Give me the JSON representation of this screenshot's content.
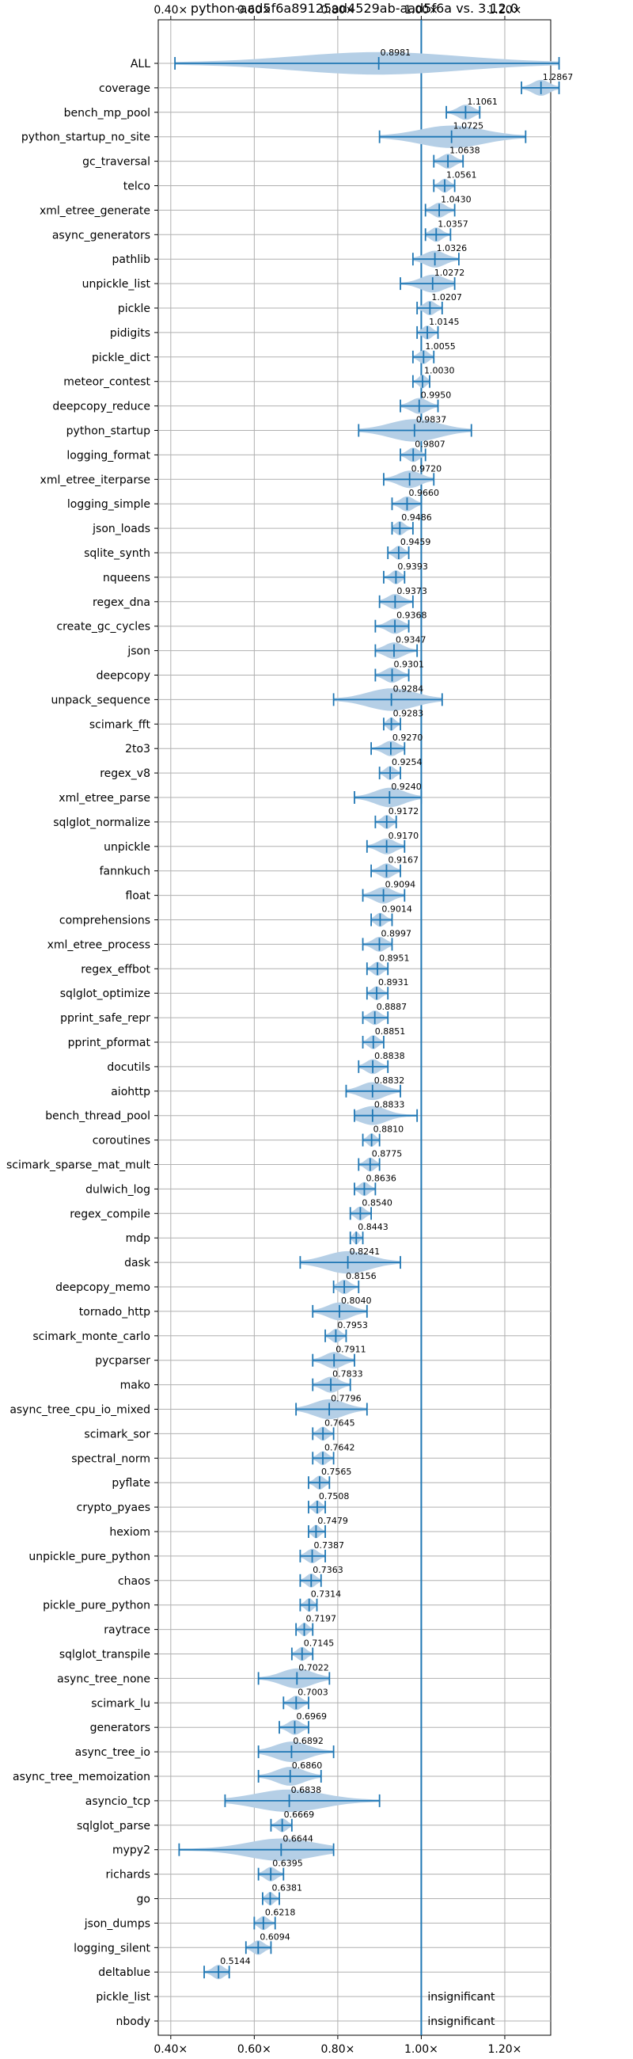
{
  "chart_data": {
    "type": "violin",
    "title": "python-aad5f6a89125ad4529ab-aad5f6a vs. 3.12.0",
    "xlim": [
      0.37,
      1.31
    ],
    "xticks": [
      0.4,
      0.6,
      0.8,
      1.0,
      1.2
    ],
    "xtick_labels": [
      "0.40×",
      "0.60×",
      "0.80×",
      "1.00×",
      "1.20×"
    ],
    "reference_line": 1.0,
    "grid": true,
    "colors": {
      "violin": "#b5cfe6",
      "stroke": "#1f77b4",
      "text": "#000000"
    },
    "series": [
      {
        "name": "ALL",
        "mean": 0.8981,
        "min": 0.41,
        "max": 1.33
      },
      {
        "name": "coverage",
        "mean": 1.2867,
        "min": 1.24,
        "max": 1.33
      },
      {
        "name": "bench_mp_pool",
        "mean": 1.1061,
        "min": 1.06,
        "max": 1.14
      },
      {
        "name": "python_startup_no_site",
        "mean": 1.0725,
        "min": 0.9,
        "max": 1.25
      },
      {
        "name": "gc_traversal",
        "mean": 1.0638,
        "min": 1.03,
        "max": 1.1
      },
      {
        "name": "telco",
        "mean": 1.0561,
        "min": 1.03,
        "max": 1.08
      },
      {
        "name": "xml_etree_generate",
        "mean": 1.043,
        "min": 1.01,
        "max": 1.08
      },
      {
        "name": "async_generators",
        "mean": 1.0357,
        "min": 1.01,
        "max": 1.07
      },
      {
        "name": "pathlib",
        "mean": 1.0326,
        "min": 0.98,
        "max": 1.09
      },
      {
        "name": "unpickle_list",
        "mean": 1.0272,
        "min": 0.95,
        "max": 1.08
      },
      {
        "name": "pickle",
        "mean": 1.0207,
        "min": 0.99,
        "max": 1.05
      },
      {
        "name": "pidigits",
        "mean": 1.0145,
        "min": 0.99,
        "max": 1.04
      },
      {
        "name": "pickle_dict",
        "mean": 1.0055,
        "min": 0.98,
        "max": 1.03
      },
      {
        "name": "meteor_contest",
        "mean": 1.003,
        "min": 0.98,
        "max": 1.02
      },
      {
        "name": "deepcopy_reduce",
        "mean": 0.995,
        "min": 0.95,
        "max": 1.04
      },
      {
        "name": "python_startup",
        "mean": 0.9837,
        "min": 0.85,
        "max": 1.12
      },
      {
        "name": "logging_format",
        "mean": 0.9807,
        "min": 0.95,
        "max": 1.01
      },
      {
        "name": "xml_etree_iterparse",
        "mean": 0.972,
        "min": 0.91,
        "max": 1.03
      },
      {
        "name": "logging_simple",
        "mean": 0.966,
        "min": 0.93,
        "max": 1.0
      },
      {
        "name": "json_loads",
        "mean": 0.9486,
        "min": 0.93,
        "max": 0.98
      },
      {
        "name": "sqlite_synth",
        "mean": 0.9459,
        "min": 0.92,
        "max": 0.97
      },
      {
        "name": "nqueens",
        "mean": 0.9393,
        "min": 0.91,
        "max": 0.96
      },
      {
        "name": "regex_dna",
        "mean": 0.9373,
        "min": 0.9,
        "max": 0.98
      },
      {
        "name": "create_gc_cycles",
        "mean": 0.9368,
        "min": 0.89,
        "max": 0.97
      },
      {
        "name": "json",
        "mean": 0.9347,
        "min": 0.89,
        "max": 0.99
      },
      {
        "name": "deepcopy",
        "mean": 0.9301,
        "min": 0.89,
        "max": 0.97
      },
      {
        "name": "unpack_sequence",
        "mean": 0.9284,
        "min": 0.79,
        "max": 1.05
      },
      {
        "name": "scimark_fft",
        "mean": 0.9283,
        "min": 0.91,
        "max": 0.95
      },
      {
        "name": "2to3",
        "mean": 0.927,
        "min": 0.88,
        "max": 0.96
      },
      {
        "name": "regex_v8",
        "mean": 0.9254,
        "min": 0.9,
        "max": 0.95
      },
      {
        "name": "xml_etree_parse",
        "mean": 0.924,
        "min": 0.84,
        "max": 1.0
      },
      {
        "name": "sqlglot_normalize",
        "mean": 0.9172,
        "min": 0.89,
        "max": 0.94
      },
      {
        "name": "unpickle",
        "mean": 0.917,
        "min": 0.87,
        "max": 0.96
      },
      {
        "name": "fannkuch",
        "mean": 0.9167,
        "min": 0.88,
        "max": 0.95
      },
      {
        "name": "float",
        "mean": 0.9094,
        "min": 0.86,
        "max": 0.96
      },
      {
        "name": "comprehensions",
        "mean": 0.9014,
        "min": 0.88,
        "max": 0.93
      },
      {
        "name": "xml_etree_process",
        "mean": 0.8997,
        "min": 0.86,
        "max": 0.93
      },
      {
        "name": "regex_effbot",
        "mean": 0.8951,
        "min": 0.87,
        "max": 0.92
      },
      {
        "name": "sqlglot_optimize",
        "mean": 0.8931,
        "min": 0.87,
        "max": 0.92
      },
      {
        "name": "pprint_safe_repr",
        "mean": 0.8887,
        "min": 0.86,
        "max": 0.92
      },
      {
        "name": "pprint_pformat",
        "mean": 0.8851,
        "min": 0.86,
        "max": 0.91
      },
      {
        "name": "docutils",
        "mean": 0.8838,
        "min": 0.85,
        "max": 0.92
      },
      {
        "name": "aiohttp",
        "mean": 0.8832,
        "min": 0.82,
        "max": 0.95
      },
      {
        "name": "bench_thread_pool",
        "mean": 0.8833,
        "min": 0.84,
        "max": 0.99
      },
      {
        "name": "coroutines",
        "mean": 0.881,
        "min": 0.86,
        "max": 0.9
      },
      {
        "name": "scimark_sparse_mat_mult",
        "mean": 0.8775,
        "min": 0.85,
        "max": 0.9
      },
      {
        "name": "dulwich_log",
        "mean": 0.8636,
        "min": 0.84,
        "max": 0.89
      },
      {
        "name": "regex_compile",
        "mean": 0.854,
        "min": 0.83,
        "max": 0.88
      },
      {
        "name": "mdp",
        "mean": 0.8443,
        "min": 0.83,
        "max": 0.86
      },
      {
        "name": "dask",
        "mean": 0.8241,
        "min": 0.71,
        "max": 0.95
      },
      {
        "name": "deepcopy_memo",
        "mean": 0.8156,
        "min": 0.79,
        "max": 0.85
      },
      {
        "name": "tornado_http",
        "mean": 0.804,
        "min": 0.74,
        "max": 0.87
      },
      {
        "name": "scimark_monte_carlo",
        "mean": 0.7953,
        "min": 0.77,
        "max": 0.82
      },
      {
        "name": "pycparser",
        "mean": 0.7911,
        "min": 0.74,
        "max": 0.84
      },
      {
        "name": "mako",
        "mean": 0.7833,
        "min": 0.74,
        "max": 0.83
      },
      {
        "name": "async_tree_cpu_io_mixed",
        "mean": 0.7796,
        "min": 0.7,
        "max": 0.87
      },
      {
        "name": "scimark_sor",
        "mean": 0.7645,
        "min": 0.74,
        "max": 0.79
      },
      {
        "name": "spectral_norm",
        "mean": 0.7642,
        "min": 0.74,
        "max": 0.79
      },
      {
        "name": "pyflate",
        "mean": 0.7565,
        "min": 0.73,
        "max": 0.78
      },
      {
        "name": "crypto_pyaes",
        "mean": 0.7508,
        "min": 0.73,
        "max": 0.77
      },
      {
        "name": "hexiom",
        "mean": 0.7479,
        "min": 0.73,
        "max": 0.77
      },
      {
        "name": "unpickle_pure_python",
        "mean": 0.7387,
        "min": 0.71,
        "max": 0.77
      },
      {
        "name": "chaos",
        "mean": 0.7363,
        "min": 0.71,
        "max": 0.76
      },
      {
        "name": "pickle_pure_python",
        "mean": 0.7314,
        "min": 0.71,
        "max": 0.75
      },
      {
        "name": "raytrace",
        "mean": 0.7197,
        "min": 0.7,
        "max": 0.74
      },
      {
        "name": "sqlglot_transpile",
        "mean": 0.7145,
        "min": 0.69,
        "max": 0.74
      },
      {
        "name": "async_tree_none",
        "mean": 0.7022,
        "min": 0.61,
        "max": 0.78
      },
      {
        "name": "scimark_lu",
        "mean": 0.7003,
        "min": 0.67,
        "max": 0.73
      },
      {
        "name": "generators",
        "mean": 0.6969,
        "min": 0.66,
        "max": 0.73
      },
      {
        "name": "async_tree_io",
        "mean": 0.6892,
        "min": 0.61,
        "max": 0.79
      },
      {
        "name": "async_tree_memoization",
        "mean": 0.686,
        "min": 0.61,
        "max": 0.76
      },
      {
        "name": "asyncio_tcp",
        "mean": 0.6838,
        "min": 0.53,
        "max": 0.9
      },
      {
        "name": "sqlglot_parse",
        "mean": 0.6669,
        "min": 0.64,
        "max": 0.69
      },
      {
        "name": "mypy2",
        "mean": 0.6644,
        "min": 0.42,
        "max": 0.79
      },
      {
        "name": "richards",
        "mean": 0.6395,
        "min": 0.61,
        "max": 0.67
      },
      {
        "name": "go",
        "mean": 0.6381,
        "min": 0.62,
        "max": 0.66
      },
      {
        "name": "json_dumps",
        "mean": 0.6218,
        "min": 0.6,
        "max": 0.65
      },
      {
        "name": "logging_silent",
        "mean": 0.6094,
        "min": 0.58,
        "max": 0.64
      },
      {
        "name": "deltablue",
        "mean": 0.5144,
        "min": 0.48,
        "max": 0.54
      },
      {
        "name": "pickle_list",
        "insignificant": true
      },
      {
        "name": "nbody",
        "insignificant": true
      }
    ],
    "insignificant_label": "insignificant"
  }
}
